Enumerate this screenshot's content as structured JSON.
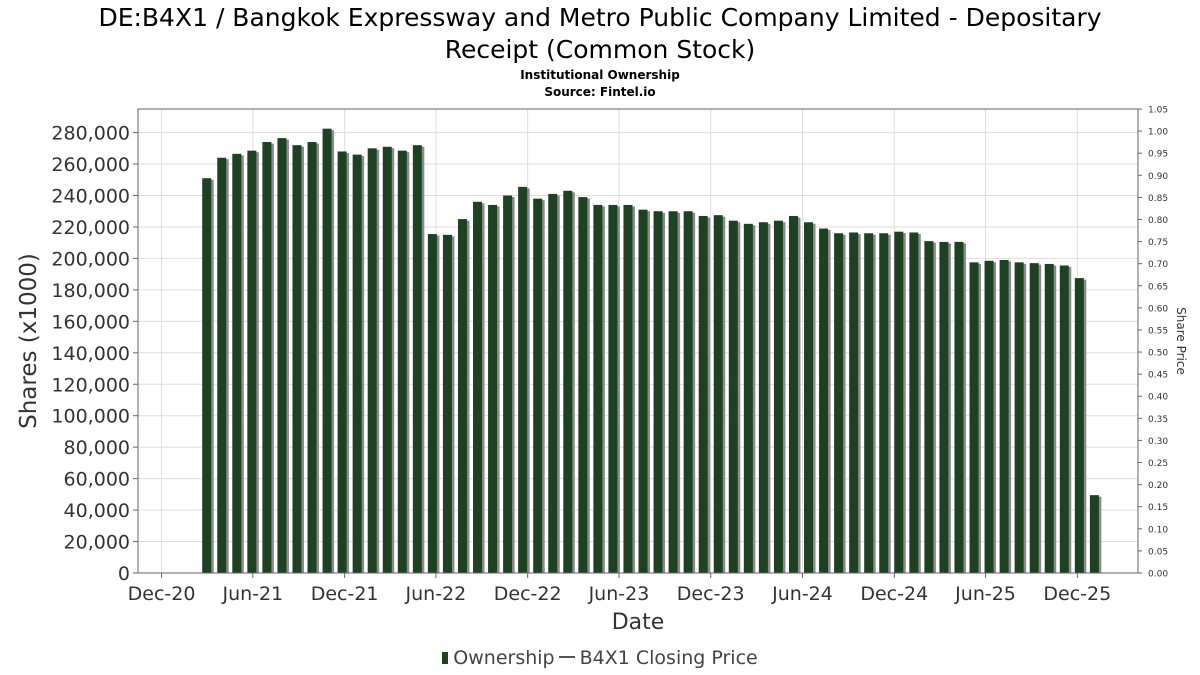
{
  "title_line1": "DE:B4X1 / Bangkok Expressway and Metro Public Company Limited - Depositary",
  "title_line2": "Receipt (Common Stock)",
  "subtitle1": "Institutional Ownership",
  "subtitle2": "Source: Fintel.io",
  "colors": {
    "bar": "#1c4222",
    "bar_shadow": "#8a8a8a",
    "grid": "#dddddd",
    "axis": "#666666"
  },
  "chart_data": {
    "type": "bar",
    "xlabel": "Date",
    "ylabel": "Shares (x1000)",
    "y2label": "Share Price",
    "ylim": [
      0,
      295000
    ],
    "y2lim": [
      0,
      1.05
    ],
    "yticks": [
      0,
      20000,
      40000,
      60000,
      80000,
      100000,
      120000,
      140000,
      160000,
      180000,
      200000,
      220000,
      240000,
      260000,
      280000
    ],
    "ytick_labels": [
      "0",
      "20,000",
      "40,000",
      "60,000",
      "80,000",
      "100,000",
      "120,000",
      "140,000",
      "160,000",
      "180,000",
      "200,000",
      "220,000",
      "240,000",
      "260,000",
      "280,000"
    ],
    "y2ticks": [
      0,
      0.05,
      0.1,
      0.15,
      0.2,
      0.25,
      0.3,
      0.35,
      0.4,
      0.45,
      0.5,
      0.55,
      0.6,
      0.65,
      0.7,
      0.75,
      0.8,
      0.85,
      0.9,
      0.95,
      1.0,
      1.05
    ],
    "y2tick_labels": [
      "0.00",
      "0.05",
      "0.10",
      "0.15",
      "0.20",
      "0.25",
      "0.30",
      "0.35",
      "0.40",
      "0.45",
      "0.50",
      "0.55",
      "0.60",
      "0.65",
      "0.70",
      "0.75",
      "0.80",
      "0.85",
      "0.90",
      "0.95",
      "1.00",
      "1.05"
    ],
    "xlim": [
      "2020-10-15",
      "2026-04-01"
    ],
    "xticks": [
      "2020-12-01",
      "2021-06-01",
      "2021-12-01",
      "2022-06-01",
      "2022-12-01",
      "2023-06-01",
      "2023-12-01",
      "2024-06-01",
      "2024-12-01",
      "2025-06-01",
      "2025-12-01"
    ],
    "xtick_labels": [
      "Dec-20",
      "Jun-21",
      "Dec-21",
      "Jun-22",
      "Dec-22",
      "Jun-23",
      "Dec-23",
      "Jun-24",
      "Dec-24",
      "Jun-25",
      "Dec-25"
    ],
    "grid": true,
    "legend_position": "bottom",
    "series": [
      {
        "name": "Ownership",
        "x": [
          "2021-03-01",
          "2021-03-31",
          "2021-04-30",
          "2021-05-30",
          "2021-06-29",
          "2021-07-29",
          "2021-08-28",
          "2021-09-27",
          "2021-10-27",
          "2021-11-26",
          "2021-12-26",
          "2022-01-25",
          "2022-02-24",
          "2022-03-26",
          "2022-04-25",
          "2022-05-25",
          "2022-06-24",
          "2022-07-24",
          "2022-08-23",
          "2022-09-22",
          "2022-10-22",
          "2022-11-21",
          "2022-12-21",
          "2023-01-20",
          "2023-02-19",
          "2023-03-21",
          "2023-04-20",
          "2023-05-20",
          "2023-06-19",
          "2023-07-19",
          "2023-08-18",
          "2023-09-17",
          "2023-10-17",
          "2023-11-16",
          "2023-12-16",
          "2024-01-15",
          "2024-02-14",
          "2024-03-15",
          "2024-04-14",
          "2024-05-14",
          "2024-06-13",
          "2024-07-13",
          "2024-08-12",
          "2024-09-11",
          "2024-10-11",
          "2024-11-10",
          "2024-12-10",
          "2025-01-09",
          "2025-02-08",
          "2025-03-10",
          "2025-04-09",
          "2025-05-09",
          "2025-06-08",
          "2025-07-08",
          "2025-08-07",
          "2025-09-06",
          "2025-10-06",
          "2025-11-05",
          "2025-12-05",
          "2026-01-04"
        ],
        "values": [
          251000,
          264000,
          266500,
          268500,
          274000,
          276500,
          272000,
          274000,
          282500,
          268000,
          266000,
          270000,
          271000,
          268500,
          272000,
          215500,
          215000,
          225000,
          236000,
          234000,
          240000,
          245500,
          238000,
          241000,
          243000,
          239000,
          234000,
          234000,
          234000,
          231000,
          230000,
          230000,
          230000,
          227000,
          227500,
          224000,
          222000,
          223000,
          224000,
          227000,
          223000,
          219000,
          216000,
          216500,
          216000,
          216000,
          217000,
          216500,
          211000,
          210500,
          210500,
          197500,
          198500,
          199000,
          197500,
          197000,
          196500,
          195500,
          187500,
          49500
        ]
      },
      {
        "name": "B4X1 Closing Price",
        "x": [],
        "values": []
      }
    ]
  }
}
